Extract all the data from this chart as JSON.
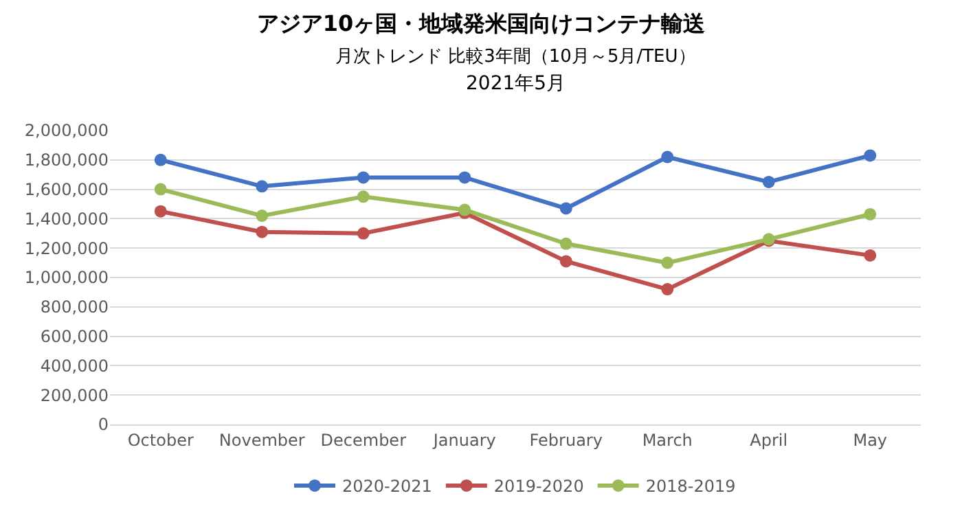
{
  "chart_data": {
    "type": "line",
    "title": "アジア10ヶ国・地域発米国向けコンテナ輸送",
    "subtitle": "月次トレンド 比較3年間（10月～5月/TEU）",
    "annotations": [
      "2021年5月"
    ],
    "categories": [
      "October",
      "November",
      "December",
      "January",
      "February",
      "March",
      "April",
      "May"
    ],
    "series": [
      {
        "name": "2020-2021",
        "color": "#4472c4",
        "values": [
          1800000,
          1620000,
          1680000,
          1680000,
          1470000,
          1820000,
          1650000,
          1830000
        ]
      },
      {
        "name": "2019-2020",
        "color": "#c0504d",
        "values": [
          1450000,
          1310000,
          1300000,
          1440000,
          1110000,
          920000,
          1250000,
          1150000
        ]
      },
      {
        "name": "2018-2019",
        "color": "#9bbb59",
        "values": [
          1600000,
          1420000,
          1550000,
          1460000,
          1230000,
          1100000,
          1260000,
          1430000
        ]
      }
    ],
    "ylim": [
      0,
      2000000
    ],
    "yticks": [
      {
        "value": 0,
        "label": "0"
      },
      {
        "value": 200000,
        "label": "200,000"
      },
      {
        "value": 400000,
        "label": "400,000"
      },
      {
        "value": 600000,
        "label": "600,000"
      },
      {
        "value": 800000,
        "label": "800,000"
      },
      {
        "value": 1000000,
        "label": "1,000,000"
      },
      {
        "value": 1200000,
        "label": "1,200,000"
      },
      {
        "value": 1400000,
        "label": "1,400,000"
      },
      {
        "value": 1600000,
        "label": "1,600,000"
      },
      {
        "value": 1800000,
        "label": "1,800,000"
      },
      {
        "value": 2000000,
        "label": "2,000,000"
      }
    ],
    "grid": "y",
    "legend": "bottom",
    "marker": "circle",
    "line_style": "solid"
  }
}
